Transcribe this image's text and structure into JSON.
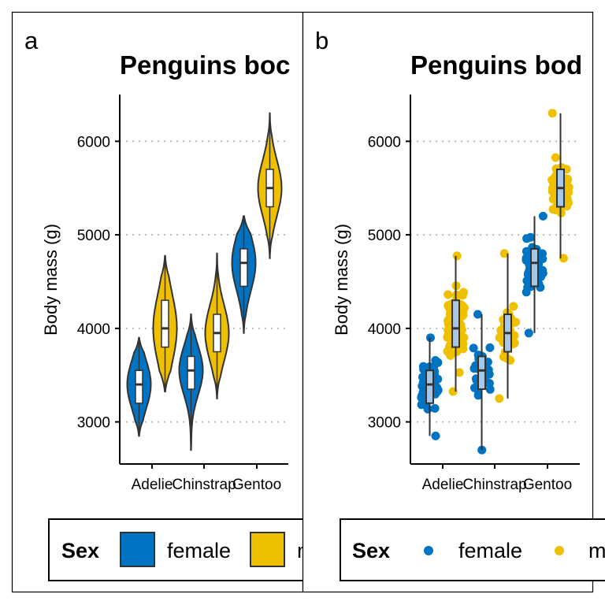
{
  "colors": {
    "female": "#0073C2",
    "male": "#EFC000",
    "box_fill_violin": "#ffffff",
    "box_fill_jitter": "#A7C7E7",
    "grid": "#bdbdbd"
  },
  "legend": {
    "title": "Sex",
    "entries": [
      "female",
      "male"
    ],
    "entries_display": [
      "female",
      "m"
    ]
  },
  "chart_data": [
    {
      "type": "violin",
      "tag": "a",
      "title": "Penguins body mass",
      "title_display": "Penguins boc",
      "xlabel": "",
      "ylabel": "Body mass (g)",
      "categories": [
        "Adelie",
        "Chinstrap",
        "Gentoo"
      ],
      "ylim": [
        2550,
        6500
      ],
      "yticks": [
        3000,
        4000,
        5000,
        6000
      ],
      "grid_y": true,
      "legend_position": "bottom",
      "series": [
        {
          "name": "female",
          "groups": [
            {
              "min": 2850,
              "q1": 3200,
              "median": 3400,
              "q3": 3550,
              "max": 3900
            },
            {
              "min": 2700,
              "q1": 3350,
              "median": 3550,
              "q3": 3700,
              "max": 4150
            },
            {
              "min": 3950,
              "q1": 4450,
              "median": 4700,
              "q3": 4850,
              "max": 5200
            }
          ]
        },
        {
          "name": "male",
          "groups": [
            {
              "min": 3325,
              "q1": 3800,
              "median": 4000,
              "q3": 4300,
              "max": 4775
            },
            {
              "min": 3250,
              "q1": 3750,
              "median": 3950,
              "q3": 4150,
              "max": 4800
            },
            {
              "min": 4750,
              "q1": 5300,
              "median": 5500,
              "q3": 5700,
              "max": 6300
            }
          ]
        }
      ]
    },
    {
      "type": "box-jitter",
      "tag": "b",
      "title": "Penguins body mass",
      "title_display": "Penguins bod",
      "xlabel": "",
      "ylabel": "Body mass (g)",
      "categories": [
        "Adelie",
        "Chinstrap",
        "Gentoo"
      ],
      "ylim": [
        2550,
        6500
      ],
      "yticks": [
        3000,
        4000,
        5000,
        6000
      ],
      "grid_y": true,
      "legend_position": "bottom",
      "series": [
        {
          "name": "female",
          "groups": [
            {
              "min": 2850,
              "q1": 3200,
              "median": 3400,
              "q3": 3550,
              "max": 3900,
              "n": 73
            },
            {
              "min": 2700,
              "q1": 3350,
              "median": 3550,
              "q3": 3700,
              "max": 4150,
              "n": 34
            },
            {
              "min": 3950,
              "q1": 4450,
              "median": 4700,
              "q3": 4850,
              "max": 5200,
              "n": 58
            }
          ]
        },
        {
          "name": "male",
          "groups": [
            {
              "min": 3325,
              "q1": 3800,
              "median": 4000,
              "q3": 4300,
              "max": 4775,
              "n": 73
            },
            {
              "min": 3250,
              "q1": 3750,
              "median": 3950,
              "q3": 4150,
              "max": 4800,
              "n": 34
            },
            {
              "min": 4750,
              "q1": 5300,
              "median": 5500,
              "q3": 5700,
              "max": 6300,
              "n": 61
            }
          ]
        }
      ]
    }
  ]
}
